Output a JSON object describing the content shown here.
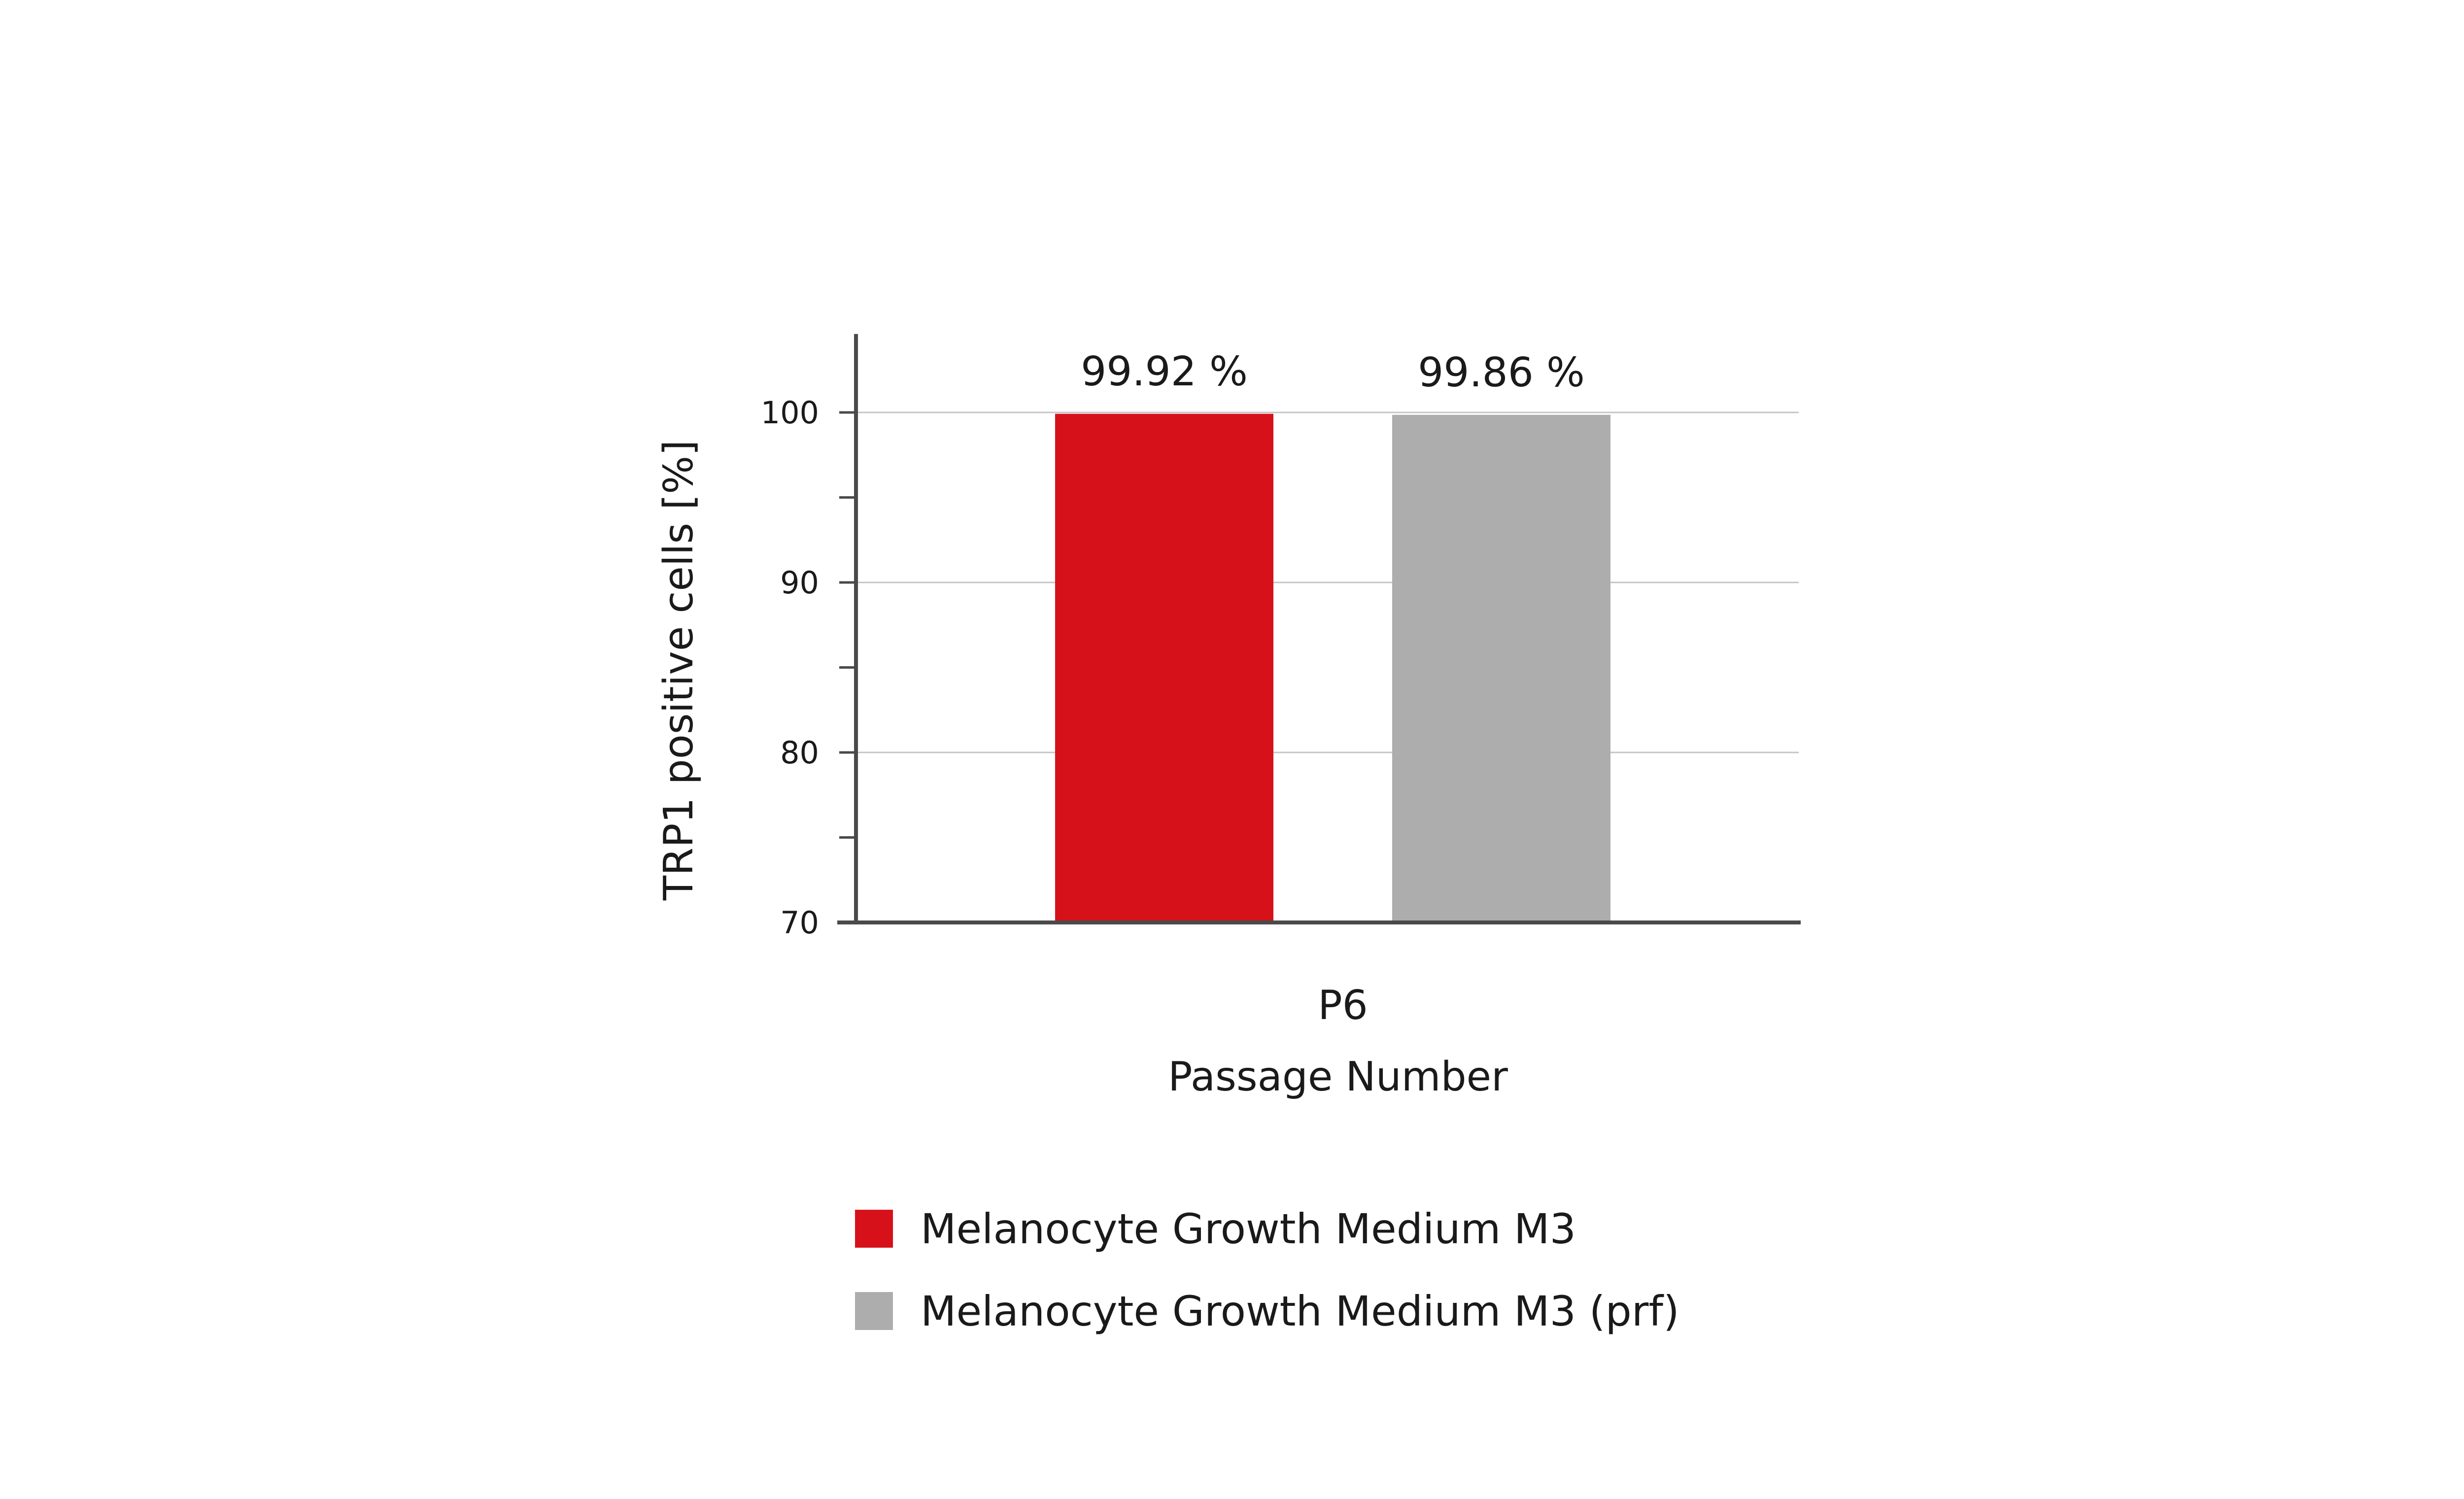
{
  "chart_data": {
    "type": "bar",
    "categories": [
      "P6"
    ],
    "series": [
      {
        "name": "Melanocyte Growth Medium M3",
        "values": [
          99.92
        ],
        "color": "#d7111a",
        "label": "99.92 %"
      },
      {
        "name": "Melanocyte Growth Medium M3 (prf)",
        "values": [
          99.86
        ],
        "color": "#adadad",
        "label": "99.86 %"
      }
    ],
    "title": "",
    "xlabel": "Passage Number",
    "ylabel": "TRP1 positive cells [%]",
    "ylim": [
      70,
      104.5
    ],
    "yticks": [
      70,
      80,
      90,
      100
    ],
    "grid": true,
    "legend_position": "bottom-center"
  }
}
